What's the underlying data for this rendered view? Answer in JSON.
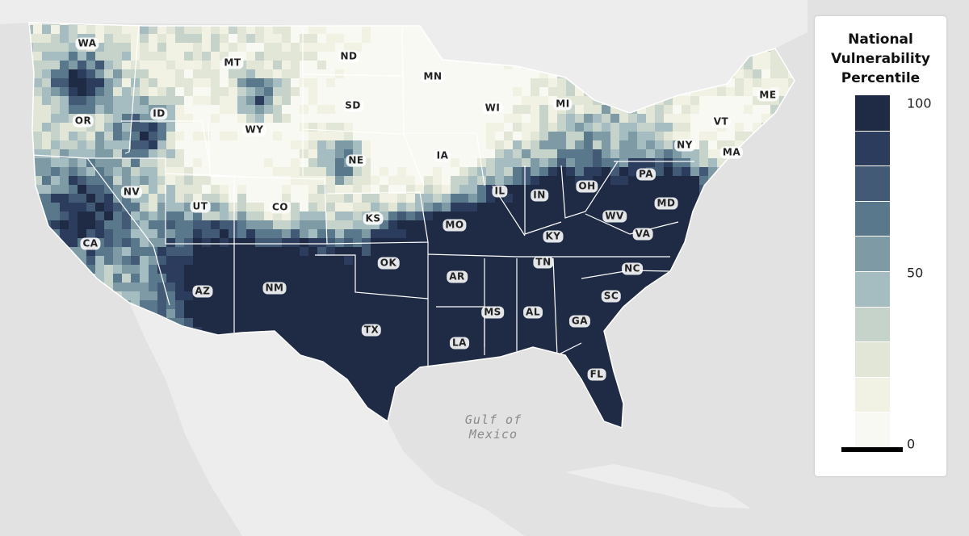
{
  "map": {
    "region": "contiguous-united-states",
    "water_labels": [
      "Gulf of",
      "Mexico"
    ],
    "state_labels": [
      "WA",
      "MT",
      "ND",
      "MN",
      "OR",
      "ID",
      "SD",
      "WI",
      "MI",
      "WY",
      "ME",
      "VT",
      "NY",
      "MA",
      "NE",
      "IA",
      "PA",
      "NV",
      "UT",
      "CO",
      "IL",
      "IN",
      "OH",
      "MD",
      "KS",
      "MO",
      "WV",
      "KY",
      "VA",
      "CA",
      "OK",
      "TN",
      "NC",
      "AR",
      "NM",
      "AZ",
      "SC",
      "MS",
      "AL",
      "TX",
      "GA",
      "LA",
      "FL"
    ],
    "colors": {
      "land_outside": "#ededed",
      "water": "#e2e2e2",
      "border": "#ffffff"
    }
  },
  "legend": {
    "title_lines": [
      "National",
      "Vulnerability",
      "Percentile"
    ],
    "ticks": {
      "max": "100",
      "mid": "50",
      "min": "0"
    },
    "bins_high_to_low": [
      "#1f2b44",
      "#2c3c5c",
      "#435a76",
      "#5a788c",
      "#7e9aa5",
      "#a5bcc0",
      "#c6d3cb",
      "#e1e6d6",
      "#f1f2e4",
      "#f9f9f3"
    ]
  }
}
